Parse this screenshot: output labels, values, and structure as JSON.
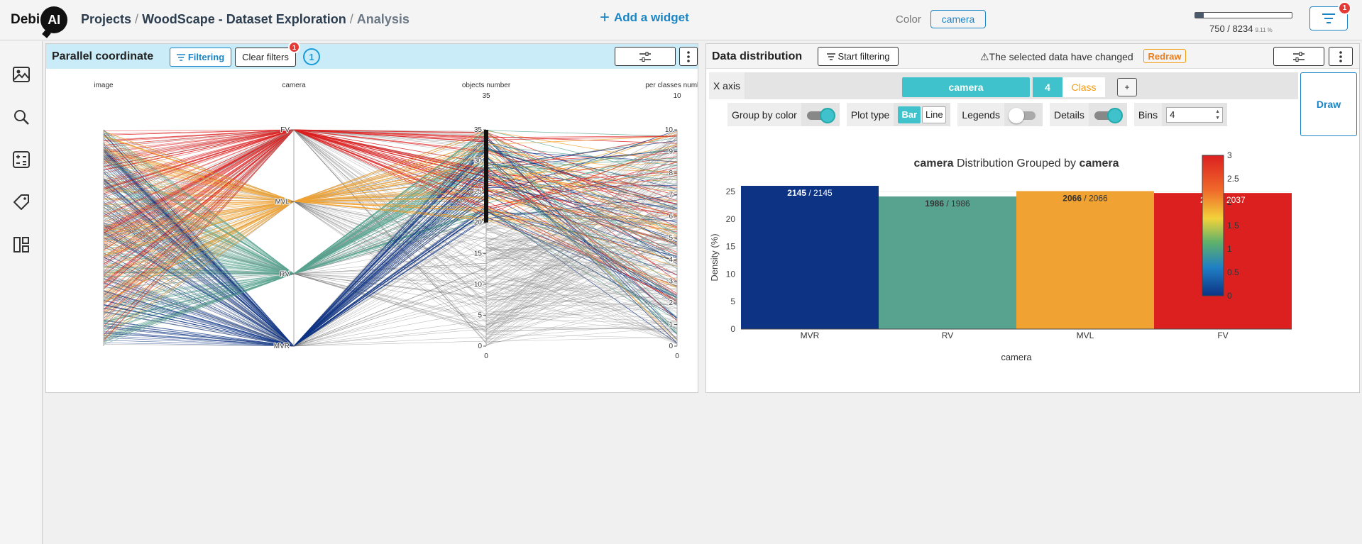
{
  "app": {
    "logo_text": "Debi",
    "logo_ai": "AI"
  },
  "breadcrumb": {
    "projects": "Projects",
    "sep": "/",
    "dataset": "WoodScape - Dataset Exploration",
    "current": "Analysis"
  },
  "header": {
    "add_widget": "Add a widget",
    "color_label": "Color",
    "color_value": "camera",
    "progress_text": "750 / 8234",
    "progress_pct": "9.11 %",
    "progress_fraction": 0.0911,
    "filter_badge": "1"
  },
  "sidebar": {
    "items": [
      "image-icon",
      "search-icon",
      "calculator-icon",
      "tag-icon",
      "dashboard-icon"
    ]
  },
  "parallel": {
    "title": "Parallel coordinate",
    "filtering_label": "Filtering",
    "clear_filters_label": "Clear filters",
    "clear_badge": "1",
    "count": "1",
    "axes": [
      {
        "name": "image",
        "ticks": []
      },
      {
        "name": "camera",
        "ticks": [
          "FV",
          "MVL",
          "RV",
          "MVR"
        ]
      },
      {
        "name": "objects number",
        "top": "35",
        "ticks": [
          "35",
          "30",
          "25",
          "20",
          "15",
          "10",
          "5",
          "0"
        ],
        "bottom": "0"
      },
      {
        "name": "per classes number.",
        "top": "10",
        "ticks": [
          "10",
          "9",
          "8",
          "7",
          "6",
          "5",
          "4",
          "3",
          "2",
          "1",
          "0"
        ],
        "bottom": "0"
      }
    ],
    "brush_range": [
      20,
      35
    ]
  },
  "distribution": {
    "title": "Data distribution",
    "start_filtering": "Start filtering",
    "warning": "⚠The selected data have changed",
    "redraw": "Redraw",
    "x_axis_label": "X axis",
    "x_axis_value": "camera",
    "x_axis_count": "4",
    "x_axis_type": "Class",
    "add_label": "+",
    "group_by_color": "Group by color",
    "plot_type": "Plot type",
    "plot_bar": "Bar",
    "plot_line": "Line",
    "legends": "Legends",
    "details": "Details",
    "bins": "Bins",
    "bins_value": "4",
    "draw": "Draw",
    "group_by_color_on": true,
    "legends_on": false,
    "details_on": true
  },
  "chart_data": {
    "type": "bar",
    "title_parts": [
      "camera",
      " Distribution Grouped by ",
      "camera"
    ],
    "xlabel": "camera",
    "ylabel": "Density (%)",
    "categories": [
      "MVR",
      "RV",
      "MVL",
      "FV"
    ],
    "values": [
      26.05,
      24.12,
      25.09,
      24.74
    ],
    "labels_strong": [
      "2145",
      "1986",
      "2066",
      "2037"
    ],
    "labels_total": [
      "2145",
      "1986",
      "2066",
      "2037"
    ],
    "colors": [
      "#0d3385",
      "#57a38f",
      "#f0a232",
      "#dc2020"
    ],
    "yticks": [
      "0",
      "5",
      "10",
      "15",
      "20",
      "25"
    ],
    "ylim": [
      0,
      26.05
    ],
    "colorbar": {
      "ticks": [
        "3",
        "2.5",
        "2",
        "1.5",
        "1",
        "0.5",
        "0"
      ],
      "range": [
        0,
        3
      ]
    }
  }
}
